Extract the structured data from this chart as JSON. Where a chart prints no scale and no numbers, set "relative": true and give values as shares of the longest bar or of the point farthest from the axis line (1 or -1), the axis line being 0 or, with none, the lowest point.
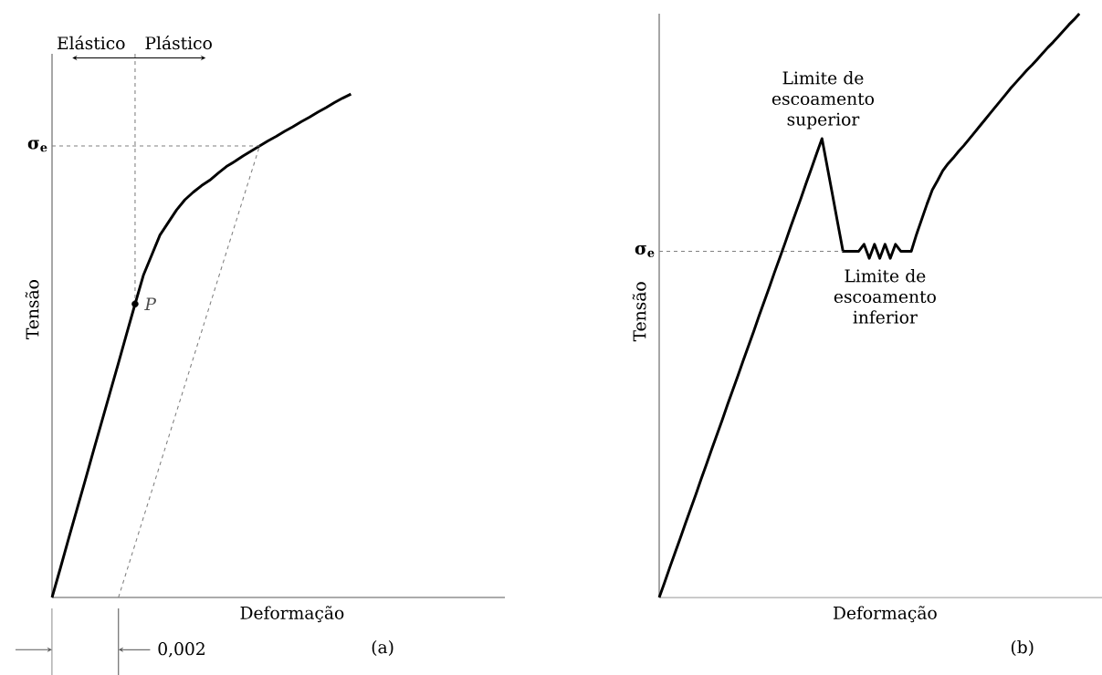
{
  "chart_data": [
    {
      "type": "line",
      "relative": true,
      "xlabel": "Deformação",
      "ylabel": "Tensão",
      "categories": [
        null,
        null,
        null,
        null,
        null,
        null,
        null,
        null,
        null,
        null,
        null,
        null,
        null,
        null,
        null,
        null,
        null,
        null,
        null,
        null,
        null,
        null,
        null,
        null,
        null,
        null,
        null,
        null,
        null,
        null,
        null,
        null,
        null,
        null,
        null,
        null,
        null
      ],
      "series": [
        {
          "color": "#000000",
          "values": [
            0,
            0.058,
            0.117,
            0.175,
            0.233,
            0.292,
            0.35,
            0.408,
            0.466,
            0.525,
            0.583,
            0.64,
            0.68,
            0.72,
            0.745,
            0.77,
            0.79,
            0.805,
            0.818,
            0.829,
            0.843,
            0.856,
            0.866,
            0.877,
            0.887,
            0.897,
            0.907,
            0.916,
            0.926,
            0.935,
            0.945,
            0.954,
            0.964,
            0.973,
            0.983,
            0.992,
            1
          ]
        },
        {
          "color": "#808080",
          "line_style": "dashed",
          "values": [
            null,
            null,
            null,
            null,
            null,
            null,
            null,
            null,
            0,
            null,
            null,
            null,
            null,
            null,
            null,
            null,
            null,
            null,
            null,
            null,
            null,
            null,
            null,
            null,
            null,
            0.897,
            null,
            null,
            null,
            null,
            null,
            null,
            null,
            null,
            null,
            null,
            null
          ]
        },
        {
          "name": "P",
          "marker": "circle",
          "color": "#000000",
          "values": [
            null,
            null,
            null,
            null,
            null,
            null,
            null,
            null,
            null,
            null,
            0.583,
            null,
            null,
            null,
            null,
            null,
            null,
            null,
            null,
            null,
            null,
            null,
            null,
            null,
            null,
            null,
            null,
            null,
            null,
            null,
            null,
            null,
            null,
            null,
            null,
            null,
            null
          ]
        }
      ],
      "ref_lines": [
        {
          "axis": "y",
          "value": 0.897,
          "label": "σ$_{e}$"
        }
      ],
      "annotations": [
        "Elástico",
        "Plástico",
        "0,002",
        "(a)"
      ]
    },
    {
      "type": "line",
      "relative": true,
      "xlabel": "Deformação",
      "ylabel": "Tensão",
      "categories": [
        null,
        null,
        null,
        null,
        null,
        null,
        null,
        null,
        null,
        null,
        null,
        null,
        null,
        null,
        null,
        null,
        null,
        null,
        null,
        null,
        null,
        null,
        null,
        null,
        null,
        null,
        null,
        null,
        null,
        null,
        null,
        null,
        null,
        null,
        null,
        null,
        null,
        null,
        null,
        null,
        null,
        null,
        null,
        null,
        null,
        null,
        null,
        null,
        null,
        null,
        null,
        null,
        null,
        null,
        null,
        null,
        null,
        null,
        null,
        null,
        null,
        null,
        null,
        null,
        null,
        null,
        null,
        null,
        null,
        null,
        null,
        null,
        null,
        null,
        null,
        null,
        null,
        null,
        null,
        null,
        null
      ],
      "series": [
        {
          "color": "#000000",
          "values": [
            0,
            0.025,
            0.051,
            0.076,
            0.101,
            0.127,
            0.152,
            0.177,
            0.203,
            0.228,
            0.254,
            0.279,
            0.304,
            0.33,
            0.355,
            0.38,
            0.406,
            0.431,
            0.456,
            0.482,
            0.507,
            0.532,
            0.558,
            0.583,
            0.608,
            0.634,
            0.659,
            0.684,
            0.71,
            0.735,
            0.761,
            0.786,
            0.738,
            0.69,
            0.641,
            0.593,
            0.593,
            0.593,
            0.593,
            0.605,
            0.581,
            0.605,
            0.581,
            0.605,
            0.581,
            0.605,
            0.593,
            0.593,
            0.593,
            0.622,
            0.648,
            0.674,
            0.698,
            0.714,
            0.731,
            0.743,
            0.753,
            0.764,
            0.774,
            0.785,
            0.796,
            0.807,
            0.818,
            0.829,
            0.84,
            0.851,
            0.862,
            0.873,
            0.883,
            0.893,
            0.903,
            0.912,
            0.922,
            0.932,
            0.942,
            0.951,
            0.961,
            0.971,
            0.981,
            0.99,
            1
          ]
        }
      ],
      "ref_lines": [
        {
          "axis": "y",
          "value": 0.593,
          "label": "σ$_{e}$"
        }
      ],
      "annotations": [
        "Limite de escoamento superior",
        "Limite de escoamento inferior",
        "(b)"
      ]
    }
  ]
}
